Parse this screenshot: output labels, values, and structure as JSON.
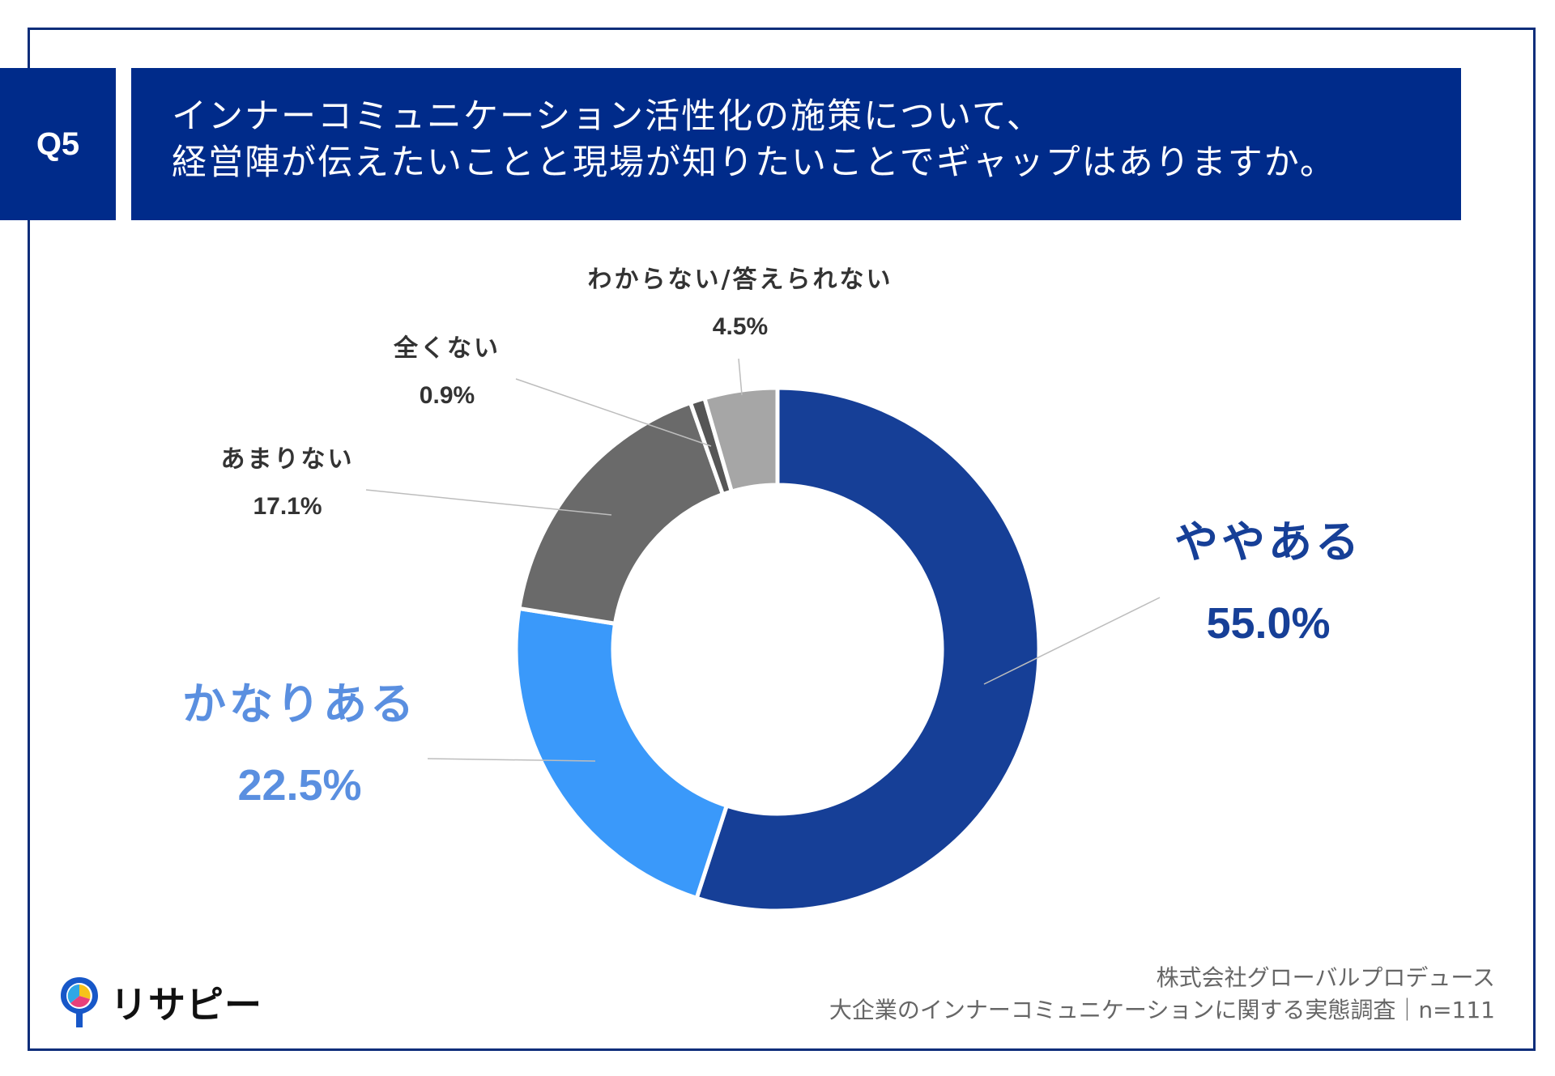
{
  "question": {
    "badge": "Q5",
    "title_line1": "インナーコミュニケーション活性化の施策について、",
    "title_line2": "経営陣が伝えたいことと現場が知りたいことでギャップはありますか。"
  },
  "chart_data": {
    "type": "donut",
    "title": "インナーコミュニケーション活性化の施策について、経営陣が伝えたいことと現場が知りたいことでギャップはありますか。",
    "start": "top (12 o'clock), clockwise",
    "slices": [
      {
        "label": "ややある",
        "value": 55.0,
        "display": "55.0%",
        "color": "#163f97",
        "label_color": "#163f97",
        "label_style": "large"
      },
      {
        "label": "かなりある",
        "value": 22.5,
        "display": "22.5%",
        "color": "#3a99fa",
        "label_color": "#5a8fe0",
        "label_style": "large"
      },
      {
        "label": "あまりない",
        "value": 17.1,
        "display": "17.1%",
        "color": "#6a6a6a",
        "label_color": "#333333",
        "label_style": "small"
      },
      {
        "label": "全くない",
        "value": 0.9,
        "display": "0.9%",
        "color": "#555555",
        "label_color": "#333333",
        "label_style": "small"
      },
      {
        "label": "わからない/答えられない",
        "value": 4.5,
        "display": "4.5%",
        "color": "#a6a6a6",
        "label_color": "#333333",
        "label_style": "small"
      }
    ]
  },
  "logo": {
    "text": "リサピー",
    "icon": "pin-logo-icon"
  },
  "source": {
    "line1": "株式会社グローバルプロデュース",
    "line2": "大企業のインナーコミュニケーションに関する実態調査｜n=111"
  },
  "colors": {
    "header_bg": "#002b8a",
    "frame": "#0d2d7a"
  }
}
